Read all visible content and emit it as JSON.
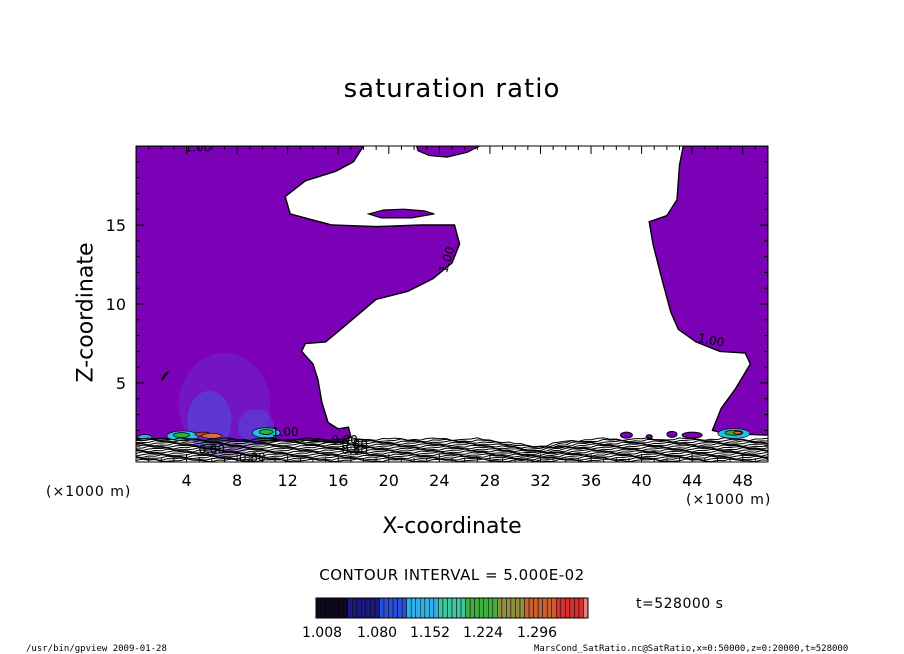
{
  "chart_data": {
    "type": "heatmap",
    "title": "saturation ratio",
    "xlabel": "X-coordinate",
    "ylabel": "Z-coordinate",
    "x_unit": "(×1000 m)",
    "y_unit": "(×1000 m)",
    "xlim": [
      0,
      50
    ],
    "ylim": [
      0,
      20
    ],
    "x_ticks": [
      4,
      8,
      12,
      16,
      20,
      24,
      28,
      32,
      36,
      40,
      44,
      48
    ],
    "y_ticks": [
      5,
      10,
      15
    ],
    "contour_interval": "CONTOUR INTERVAL = 5.000E-02",
    "contour_labels": [
      "1.00",
      "1.00",
      "1.00",
      "1.00",
      "0.90",
      "0.80",
      "0.80",
      "0.80",
      "0.80"
    ],
    "colorbar_ticks": [
      "1.008",
      "1.080",
      "1.152",
      "1.224",
      "1.296"
    ],
    "colorbar_range": [
      1.008,
      1.296
    ],
    "time_label": "t=528000 s",
    "colors": {
      "supersaturated": "#7b00b6",
      "low": "#1a0a5c",
      "mid_blue": "#3a6ee8",
      "cyan": "#22c0e8",
      "green": "#30b030",
      "orange": "#e07030",
      "red": "#d83030"
    }
  },
  "footer": {
    "left": "/usr/bin/gpview  2009-01-28",
    "right": "MarsCond_SatRatio.nc@SatRatio,x=0:50000,z=0:20000,t=528000"
  }
}
